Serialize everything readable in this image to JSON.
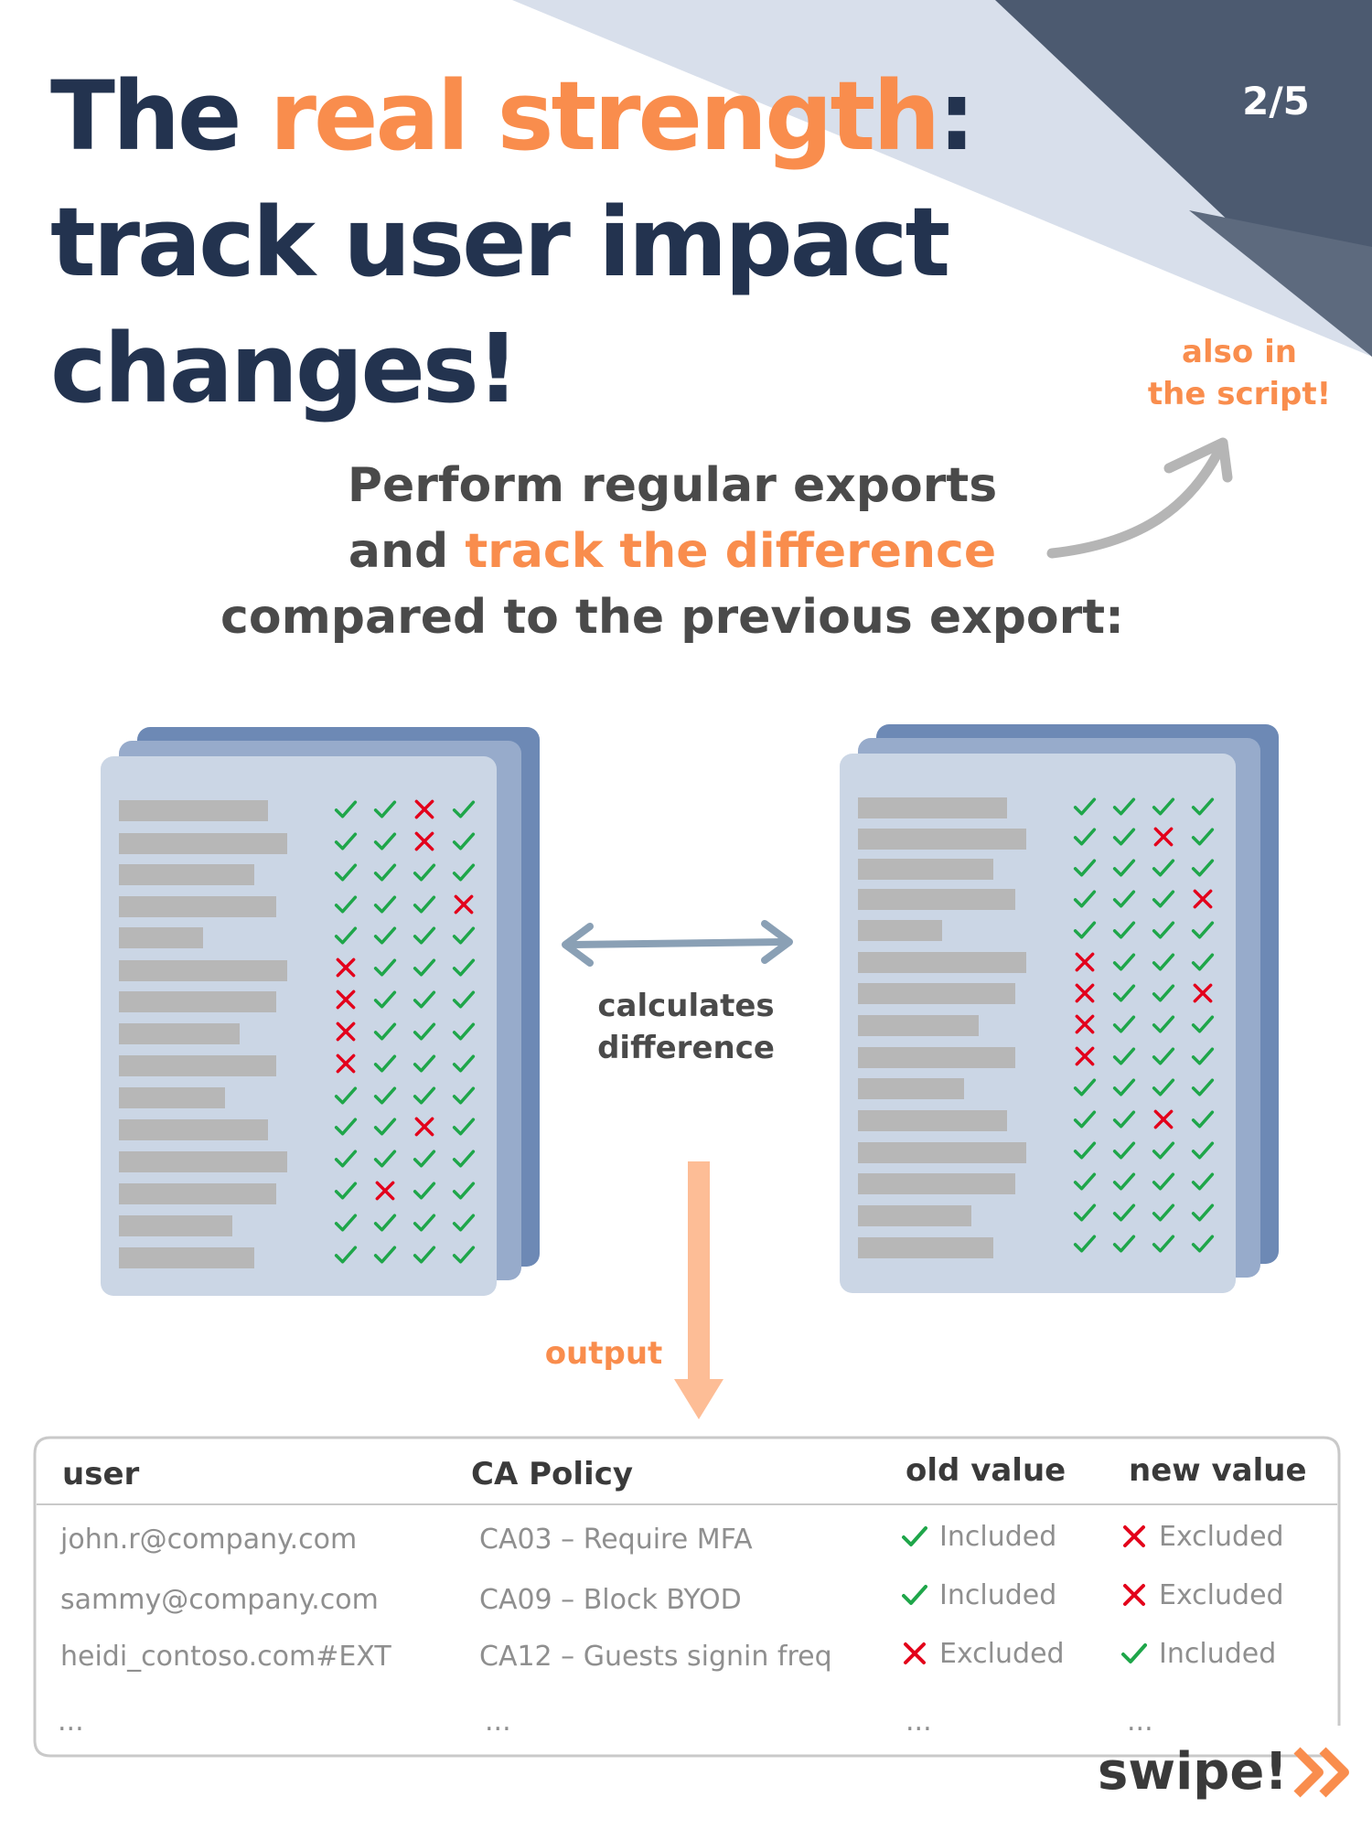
{
  "header": {
    "title_part1": "The ",
    "title_accent": "real strength",
    "title_part2": ":",
    "title_line2": "track user impact",
    "title_line3": "changes!",
    "page_counter": "2/5"
  },
  "side_note": {
    "line1": "also in",
    "line2": "the script!"
  },
  "intro": {
    "line1": "Perform regular exports",
    "line2_prefix": "and ",
    "line2_accent": "track the difference",
    "line3": "compared to the previous export:"
  },
  "diagram": {
    "calc_line1": "calculates",
    "calc_line2": "difference",
    "output_label": "output"
  },
  "results_table": {
    "headers": [
      "user",
      "CA Policy",
      "old value",
      "new value"
    ],
    "rows": [
      {
        "user": "john.r@company.com",
        "policy": "CA03 – Require MFA",
        "old_value": "Included",
        "old_icon": "check-icon",
        "new_value": "Excluded",
        "new_icon": "cross-icon"
      },
      {
        "user": "sammy@company.com",
        "policy": "CA09 – Block BYOD",
        "old_value": "Included",
        "old_icon": "check-icon",
        "new_value": "Excluded",
        "new_icon": "cross-icon"
      },
      {
        "user": "heidi_contoso.com#EXT",
        "policy": "CA12 – Guests signin freq",
        "old_value": "Excluded",
        "old_icon": "cross-icon",
        "new_value": "Included",
        "new_icon": "check-icon"
      }
    ],
    "ellipsis": "..."
  },
  "footer": {
    "swipe_label": "swipe!",
    "swipe_icon": "double-chevron-right-icon"
  },
  "colors": {
    "navy": "#23334f",
    "accent_orange": "#f98d4d",
    "check_green": "#1fa64a",
    "cross_red": "#e3001b",
    "sheet_back": "#6d89b5",
    "sheet_front": "#cbd6e5"
  }
}
